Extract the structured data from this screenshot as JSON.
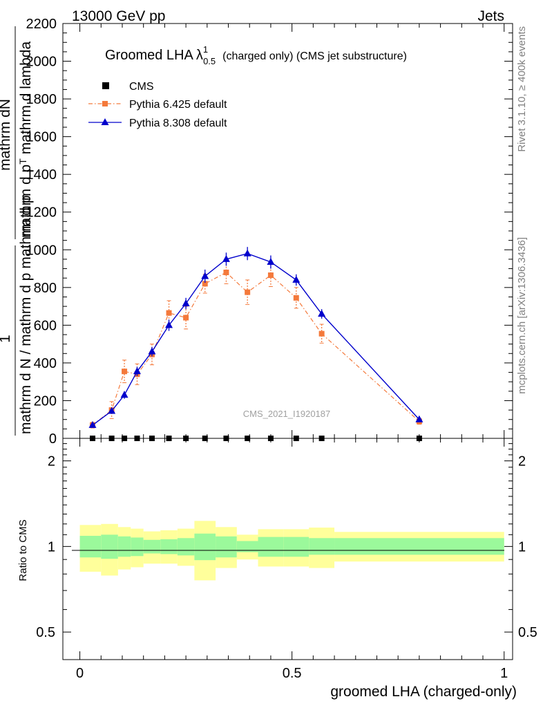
{
  "header": {
    "left": "13000 GeV pp",
    "right": "Jets"
  },
  "side_labels": {
    "rivet": "Rivet 3.1.10, ≥ 400k events",
    "mcplots": "mcplots.cern.ch [arXiv:1306.3436]"
  },
  "chart_data": [
    {
      "type": "line",
      "title": "Groomed LHA",
      "title_symbol": "λ",
      "title_superscript": "1",
      "title_subscript": "0.5",
      "title_suffix": "(charged only) (CMS jet substructure)",
      "watermark": "CMS_2021_I1920187",
      "ylabel_numerator": "mathrm dN",
      "ylabel_denominator": "mathrm d p",
      "ylabel_denominator_sub": "T",
      "ylabel_denominator_rest": "mathrm d lambda",
      "ylabel_prefix_num": "1",
      "ylabel_prefix_den": "mathrm d N / mathrm d p",
      "ylabel_prefix_den_rest": "mathrm d p",
      "ylim": [
        0,
        2200
      ],
      "xlim": [
        -0.04,
        1.02
      ],
      "yticks": [
        0,
        200,
        400,
        600,
        800,
        1000,
        1200,
        1400,
        1600,
        1800,
        2000,
        2200
      ],
      "ytick_labels": [
        "0",
        "200",
        "400",
        "600",
        "800",
        "1000",
        "1200",
        "1400",
        "1600",
        "1800",
        "2000",
        "2200"
      ],
      "legend_position": "top-left",
      "series": [
        {
          "name": "CMS",
          "color": "#000000",
          "marker": "square",
          "x": [
            0.03,
            0.075,
            0.105,
            0.135,
            0.17,
            0.21,
            0.25,
            0.295,
            0.345,
            0.395,
            0.45,
            0.51,
            0.57,
            0.8
          ],
          "y": [
            0,
            0,
            0,
            0,
            0,
            0,
            0,
            0,
            0,
            0,
            0,
            0,
            0,
            0
          ]
        },
        {
          "name": "Pythia 6.425 default",
          "color": "#f4793b",
          "marker": "square",
          "line": "dashdot",
          "x": [
            0.03,
            0.075,
            0.105,
            0.135,
            0.17,
            0.21,
            0.25,
            0.295,
            0.345,
            0.395,
            0.45,
            0.51,
            0.57,
            0.8
          ],
          "y": [
            70,
            150,
            355,
            340,
            445,
            665,
            640,
            820,
            880,
            775,
            865,
            745,
            555,
            90
          ],
          "yerr": [
            15,
            45,
            60,
            55,
            55,
            65,
            60,
            50,
            60,
            65,
            60,
            55,
            50,
            15
          ]
        },
        {
          "name": "Pythia 8.308 default",
          "color": "#0000cc",
          "marker": "triangle",
          "line": "solid",
          "x": [
            0.03,
            0.075,
            0.105,
            0.135,
            0.17,
            0.21,
            0.25,
            0.295,
            0.345,
            0.395,
            0.45,
            0.51,
            0.57,
            0.8
          ],
          "y": [
            70,
            145,
            230,
            355,
            460,
            600,
            715,
            860,
            950,
            980,
            935,
            840,
            660,
            100
          ],
          "yerr": [
            10,
            15,
            20,
            25,
            25,
            30,
            30,
            35,
            35,
            35,
            35,
            30,
            25,
            10
          ]
        }
      ]
    },
    {
      "type": "area",
      "ylabel": "Ratio to CMS",
      "xlabel": "groomed LHA (charged-only)",
      "ylim": [
        0.4,
        2.4
      ],
      "log_y": true,
      "xlim": [
        -0.04,
        1.02
      ],
      "yticks": [
        0.5,
        1,
        2
      ],
      "ytick_labels": [
        "0.5",
        "1",
        "2"
      ],
      "xticks": [
        0,
        0.5,
        1
      ],
      "xtick_labels": [
        "0",
        "0.5",
        "1"
      ],
      "bins": [
        0,
        0.05,
        0.09,
        0.12,
        0.15,
        0.19,
        0.23,
        0.27,
        0.32,
        0.37,
        0.42,
        0.48,
        0.54,
        0.6,
        1.0
      ],
      "inner_band": [
        [
          0.915,
          1.09
        ],
        [
          0.905,
          1.1
        ],
        [
          0.92,
          1.085
        ],
        [
          0.925,
          1.075
        ],
        [
          0.945,
          1.055
        ],
        [
          0.94,
          1.06
        ],
        [
          0.93,
          1.07
        ],
        [
          0.895,
          1.11
        ],
        [
          0.915,
          1.085
        ],
        [
          0.955,
          1.045
        ],
        [
          0.92,
          1.08
        ],
        [
          0.92,
          1.08
        ],
        [
          0.935,
          1.07
        ],
        [
          0.935,
          1.07
        ]
      ],
      "outer_band": [
        [
          0.815,
          1.19
        ],
        [
          0.79,
          1.2
        ],
        [
          0.83,
          1.17
        ],
        [
          0.845,
          1.155
        ],
        [
          0.87,
          1.13
        ],
        [
          0.87,
          1.14
        ],
        [
          0.855,
          1.155
        ],
        [
          0.76,
          1.23
        ],
        [
          0.84,
          1.17
        ],
        [
          0.9,
          1.1
        ],
        [
          0.85,
          1.15
        ],
        [
          0.85,
          1.15
        ],
        [
          0.84,
          1.165
        ],
        [
          0.885,
          1.125
        ]
      ],
      "inner_color": "#9bf99b",
      "outer_color": "#ffff9b",
      "reference_line": 1
    }
  ]
}
